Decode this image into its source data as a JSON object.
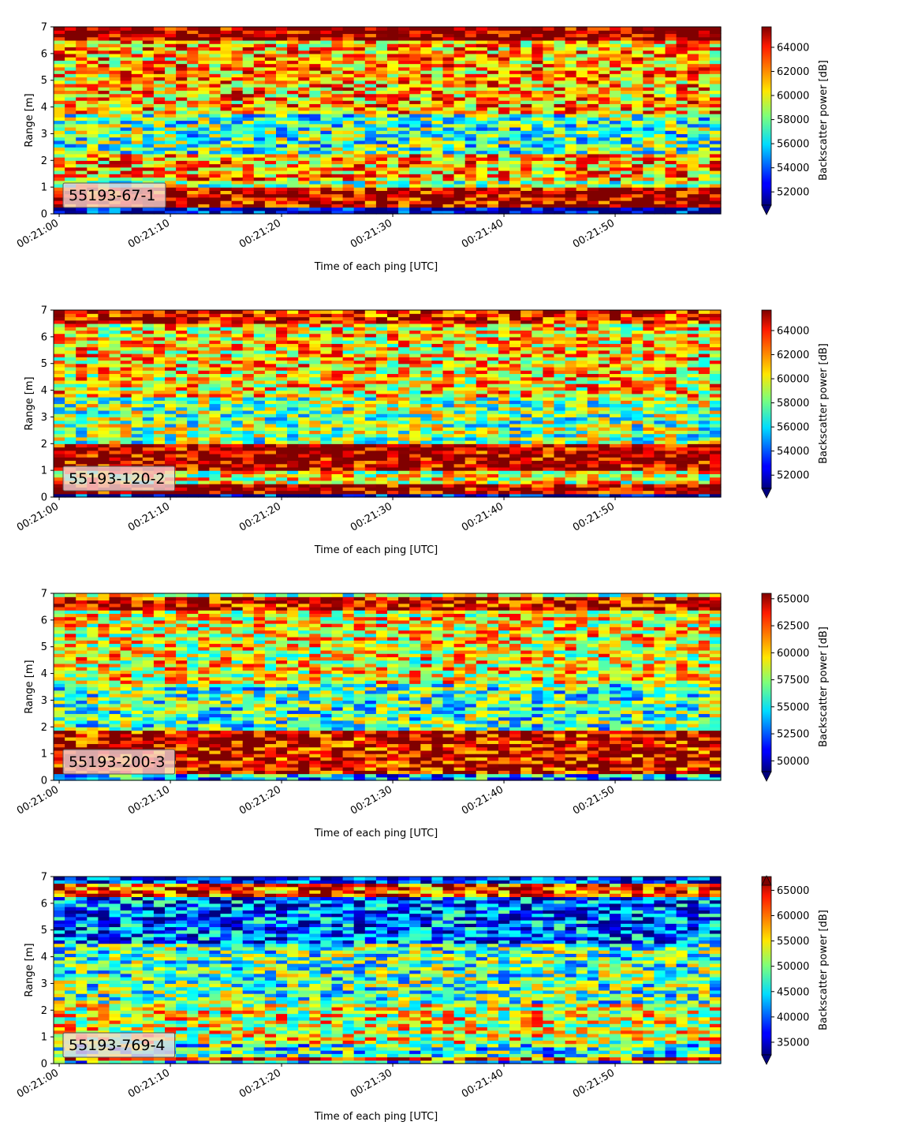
{
  "chart_data": [
    {
      "type": "heatmap",
      "colormap": "jet",
      "label": "55193-67-1",
      "xlabel": "Time of each ping [UTC]",
      "ylabel": "Range [m]",
      "xticks": [
        "00:21:00",
        "00:21:10",
        "00:21:20",
        "00:21:30",
        "00:21:40",
        "00:21:50"
      ],
      "xlim": [
        "00:20:59.5",
        "00:21:59.5"
      ],
      "ylim": [
        0,
        7
      ],
      "yticks": [
        "0",
        "1",
        "2",
        "3",
        "4",
        "5",
        "6",
        "7"
      ],
      "colorbar": {
        "label": "Backscatter power [dB]",
        "range": [
          50900,
          65700
        ],
        "ticks": [
          "52000",
          "54000",
          "56000",
          "58000",
          "60000",
          "62000",
          "64000"
        ],
        "extend": "min"
      },
      "bands": [
        {
          "from": 0.0,
          "to": 0.2,
          "level": 0.05
        },
        {
          "from": 0.2,
          "to": 1.0,
          "level": 0.95
        },
        {
          "from": 1.0,
          "to": 1.3,
          "level": 0.55
        },
        {
          "from": 1.3,
          "to": 2.2,
          "level": 0.7
        },
        {
          "from": 2.2,
          "to": 3.8,
          "level": 0.45
        },
        {
          "from": 3.8,
          "to": 6.5,
          "level": 0.7
        },
        {
          "from": 6.5,
          "to": 7.0,
          "level": 1.0
        }
      ]
    },
    {
      "type": "heatmap",
      "colormap": "jet",
      "label": "55193-120-2",
      "xlabel": "Time of each ping [UTC]",
      "ylabel": "Range [m]",
      "xticks": [
        "00:21:00",
        "00:21:10",
        "00:21:20",
        "00:21:30",
        "00:21:40",
        "00:21:50"
      ],
      "xlim": [
        "00:20:59.5",
        "00:21:59.5"
      ],
      "ylim": [
        0,
        7
      ],
      "yticks": [
        "0",
        "1",
        "2",
        "3",
        "4",
        "5",
        "6",
        "7"
      ],
      "colorbar": {
        "label": "Backscatter power [dB]",
        "range": [
          50900,
          65700
        ],
        "ticks": [
          "52000",
          "54000",
          "56000",
          "58000",
          "60000",
          "62000",
          "64000"
        ],
        "extend": "min"
      },
      "bands": [
        {
          "from": 0.0,
          "to": 0.1,
          "level": 0.05
        },
        {
          "from": 0.1,
          "to": 0.45,
          "level": 0.97
        },
        {
          "from": 0.45,
          "to": 0.95,
          "level": 0.6
        },
        {
          "from": 0.95,
          "to": 2.0,
          "level": 0.97
        },
        {
          "from": 2.0,
          "to": 3.8,
          "level": 0.5
        },
        {
          "from": 3.8,
          "to": 6.5,
          "level": 0.65
        },
        {
          "from": 6.5,
          "to": 7.0,
          "level": 0.9
        }
      ]
    },
    {
      "type": "heatmap",
      "colormap": "jet",
      "label": "55193-200-3",
      "xlabel": "Time of each ping [UTC]",
      "ylabel": "Range [m]",
      "xticks": [
        "00:21:00",
        "00:21:10",
        "00:21:20",
        "00:21:30",
        "00:21:40",
        "00:21:50"
      ],
      "xlim": [
        "00:20:59.5",
        "00:21:59.5"
      ],
      "ylim": [
        0,
        7
      ],
      "yticks": [
        "0",
        "1",
        "2",
        "3",
        "4",
        "5",
        "6",
        "7"
      ],
      "colorbar": {
        "label": "Backscatter power [dB]",
        "range": [
          49000,
          65500
        ],
        "ticks": [
          "50000",
          "52500",
          "55000",
          "57500",
          "60000",
          "62500",
          "65000"
        ],
        "extend": "min"
      },
      "bands": [
        {
          "from": 0.0,
          "to": 0.2,
          "level": 0.3
        },
        {
          "from": 0.2,
          "to": 1.9,
          "level": 0.92
        },
        {
          "from": 1.9,
          "to": 3.6,
          "level": 0.45
        },
        {
          "from": 3.6,
          "to": 6.4,
          "level": 0.62
        },
        {
          "from": 6.4,
          "to": 6.85,
          "level": 0.92
        },
        {
          "from": 6.85,
          "to": 7.0,
          "level": 0.55
        }
      ]
    },
    {
      "type": "heatmap",
      "colormap": "jet",
      "label": "55193-769-4",
      "xlabel": "Time of each ping [UTC]",
      "ylabel": "Range [m]",
      "xticks": [
        "00:21:00",
        "00:21:10",
        "00:21:20",
        "00:21:30",
        "00:21:40",
        "00:21:50"
      ],
      "xlim": [
        "00:20:59.5",
        "00:21:59.5"
      ],
      "ylim": [
        0,
        7
      ],
      "yticks": [
        "0",
        "1",
        "2",
        "3",
        "4",
        "5",
        "6",
        "7"
      ],
      "colorbar": {
        "label": "Backscatter power [dB]",
        "range": [
          32500,
          66000
        ],
        "ticks": [
          "35000",
          "40000",
          "45000",
          "50000",
          "55000",
          "60000",
          "65000"
        ],
        "extend": "both"
      },
      "bands": [
        {
          "from": 0.0,
          "to": 0.15,
          "level": 0.35
        },
        {
          "from": 0.15,
          "to": 0.3,
          "level": 0.85
        },
        {
          "from": 0.3,
          "to": 0.8,
          "level": 0.4
        },
        {
          "from": 0.8,
          "to": 2.2,
          "level": 0.6
        },
        {
          "from": 2.2,
          "to": 4.5,
          "level": 0.45
        },
        {
          "from": 4.5,
          "to": 6.2,
          "level": 0.22
        },
        {
          "from": 6.2,
          "to": 6.7,
          "level": 0.8
        },
        {
          "from": 6.7,
          "to": 7.0,
          "level": 0.15
        }
      ]
    }
  ]
}
